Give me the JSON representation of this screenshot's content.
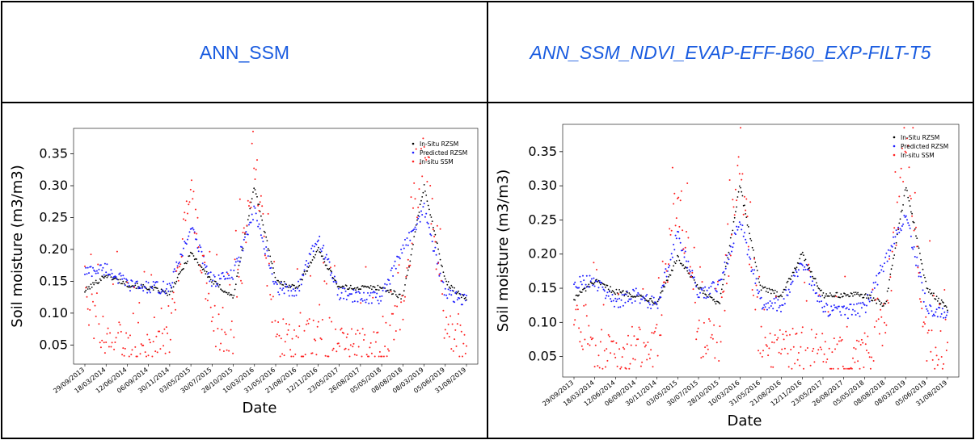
{
  "headers": [
    "ANN_SSM",
    "ANN_SSM_NDVI_EVAP-EFF-B60_EXP-FILT-T5"
  ],
  "colors": {
    "insitu_rzsm": "#000000",
    "predicted_rzsm": "#1f1fff",
    "insitu_ssm": "#ff2020",
    "header_text": "#1a5ce0"
  },
  "chart_data": [
    {
      "type": "scatter",
      "panel_title": "ANN_SSM",
      "xlabel": "Date",
      "ylabel": "Soil moisture (m3/m3)",
      "y_ticks": [
        0.05,
        0.1,
        0.15,
        0.2,
        0.25,
        0.3,
        0.35
      ],
      "y_tick_labels": [
        "0.05",
        "0.10",
        "0.15",
        "0.20",
        "0.25",
        "0.30",
        "0.35"
      ],
      "x_tick_labels": [
        "29/09/2013",
        "18/03/2014",
        "12/06/2014",
        "06/09/2014",
        "30/11/2014",
        "03/05/2015",
        "30/07/2015",
        "28/10/2015",
        "10/03/2016",
        "31/05/2016",
        "21/08/2016",
        "12/11/2016",
        "23/05/2017",
        "26/08/2017",
        "05/05/2018",
        "08/08/2018",
        "08/03/2019",
        "05/06/2019",
        "31/08/2019"
      ],
      "ylim": [
        0.02,
        0.39
      ],
      "legend_position": "top-right",
      "grid": false,
      "series": [
        {
          "name": "In-Situ RZSM",
          "marker": "point",
          "x": [
            0,
            1,
            2,
            3,
            4,
            5,
            6,
            7,
            8,
            9,
            10,
            11,
            12,
            13,
            14,
            15,
            16,
            17,
            18
          ],
          "y": [
            0.135,
            0.16,
            0.145,
            0.14,
            0.13,
            0.195,
            0.15,
            0.125,
            0.3,
            0.15,
            0.14,
            0.2,
            0.14,
            0.14,
            0.14,
            0.125,
            0.3,
            0.15,
            0.12
          ]
        },
        {
          "name": "Predicted RZSM",
          "marker": "point",
          "x": [
            0,
            1,
            2,
            3,
            4,
            5,
            6,
            7,
            8,
            9,
            10,
            11,
            12,
            13,
            14,
            15,
            16,
            17,
            18
          ],
          "y": [
            0.165,
            0.17,
            0.145,
            0.14,
            0.14,
            0.235,
            0.15,
            0.16,
            0.26,
            0.14,
            0.135,
            0.22,
            0.13,
            0.125,
            0.125,
            0.2,
            0.265,
            0.13,
            0.12
          ]
        },
        {
          "name": "In-situ SSM",
          "marker": "point",
          "x": [
            0,
            1,
            2,
            3,
            4,
            5,
            6,
            7,
            8,
            9,
            10,
            11,
            12,
            13,
            14,
            15,
            16,
            17,
            18
          ],
          "y": [
            0.11,
            0.07,
            0.04,
            0.06,
            0.07,
            0.29,
            0.08,
            0.07,
            0.34,
            0.06,
            0.05,
            0.06,
            0.05,
            0.045,
            0.04,
            0.1,
            0.37,
            0.07,
            0.04
          ]
        }
      ]
    },
    {
      "type": "scatter",
      "panel_title": "ANN_SSM_NDVI_EVAP-EFF-B60_EXP-FILT-T5",
      "xlabel": "Date",
      "ylabel": "Soil moisture (m3/m3)",
      "y_ticks": [
        0.05,
        0.1,
        0.15,
        0.2,
        0.25,
        0.3,
        0.35
      ],
      "y_tick_labels": [
        "0.05",
        "0.10",
        "0.15",
        "0.20",
        "0.25",
        "0.30",
        "0.35"
      ],
      "x_tick_labels": [
        "29/09/2013",
        "18/03/2014",
        "12/06/2014",
        "06/09/2014",
        "30/11/2014",
        "03/05/2015",
        "30/07/2015",
        "28/10/2015",
        "10/03/2016",
        "31/05/2016",
        "21/08/2016",
        "12/11/2016",
        "23/05/2017",
        "26/08/2017",
        "05/05/2018",
        "08/08/2018",
        "08/03/2019",
        "05/06/2019",
        "31/08/2019"
      ],
      "ylim": [
        0.02,
        0.39
      ],
      "legend_position": "top-right",
      "grid": false,
      "series": [
        {
          "name": "In-Situ RZSM",
          "marker": "point",
          "x": [
            0,
            1,
            2,
            3,
            4,
            5,
            6,
            7,
            8,
            9,
            10,
            11,
            12,
            13,
            14,
            15,
            16,
            17,
            18
          ],
          "y": [
            0.135,
            0.16,
            0.145,
            0.14,
            0.13,
            0.195,
            0.15,
            0.125,
            0.3,
            0.15,
            0.14,
            0.2,
            0.14,
            0.14,
            0.14,
            0.125,
            0.3,
            0.15,
            0.12
          ]
        },
        {
          "name": "Predicted RZSM",
          "marker": "point",
          "x": [
            0,
            1,
            2,
            3,
            4,
            5,
            6,
            7,
            8,
            9,
            10,
            11,
            12,
            13,
            14,
            15,
            16,
            17,
            18
          ],
          "y": [
            0.16,
            0.16,
            0.13,
            0.14,
            0.125,
            0.23,
            0.14,
            0.155,
            0.25,
            0.13,
            0.125,
            0.19,
            0.12,
            0.115,
            0.12,
            0.19,
            0.26,
            0.12,
            0.115
          ]
        },
        {
          "name": "In-situ SSM",
          "marker": "point",
          "x": [
            0,
            1,
            2,
            3,
            4,
            5,
            6,
            7,
            8,
            9,
            10,
            11,
            12,
            13,
            14,
            15,
            16,
            17,
            18
          ],
          "y": [
            0.11,
            0.07,
            0.04,
            0.06,
            0.07,
            0.29,
            0.08,
            0.07,
            0.34,
            0.06,
            0.05,
            0.06,
            0.05,
            0.045,
            0.04,
            0.1,
            0.37,
            0.07,
            0.04
          ]
        }
      ]
    }
  ]
}
